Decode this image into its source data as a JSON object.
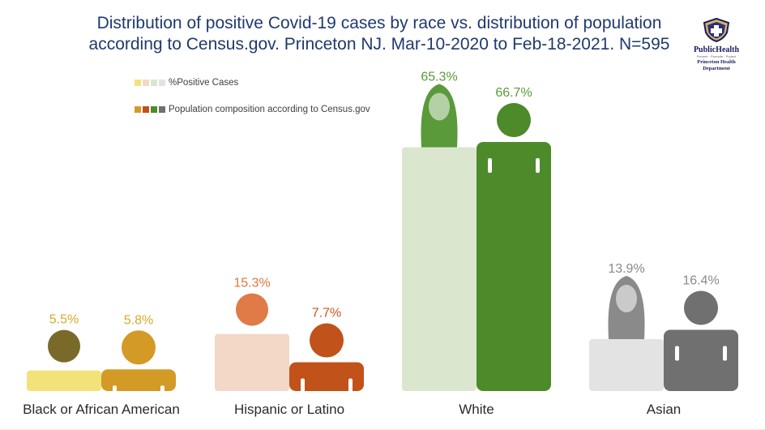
{
  "title_line1": "Distribution of positive Covid-19 cases by race vs. distribution of population",
  "title_line2": "according to Census.gov. Princeton NJ. Mar-10-2020 to Feb-18-2021. N=595",
  "logo": {
    "line1": "PublicHealth",
    "line2": "Prevent · Promote · Protect",
    "line3": "Princeton Health Department"
  },
  "legend": {
    "positive_label": "%Positive Cases",
    "population_label": "Population composition according to Census.gov",
    "positive_swatches": [
      "#f2e27a",
      "#f3d8c7",
      "#dbe6cf",
      "#e3e3e3"
    ],
    "population_swatches": [
      "#d39a26",
      "#c0521a",
      "#4d8a2a",
      "#707070"
    ]
  },
  "chart_data": {
    "type": "bar",
    "categories": [
      "Black or African American",
      "Hispanic or Latino",
      "White",
      "Asian"
    ],
    "series": [
      {
        "name": "%Positive Cases",
        "values": [
          5.5,
          15.3,
          65.3,
          13.9
        ],
        "labels": [
          "5.5%",
          "15.3%",
          "65.3%",
          "13.9%"
        ]
      },
      {
        "name": "Population composition according to Census.gov",
        "values": [
          5.8,
          7.7,
          66.7,
          16.4
        ],
        "labels": [
          "5.8%",
          "7.7%",
          "66.7%",
          "16.4%"
        ]
      }
    ],
    "colors": {
      "positive": [
        "#f2e27a",
        "#f3d8c7",
        "#dbe6cf",
        "#e3e3e3"
      ],
      "population": [
        "#d39a26",
        "#c0521a",
        "#4d8a2a",
        "#707070"
      ],
      "positive_labels": [
        "#d7aa2a",
        "#e0763c",
        "#5a9a3a",
        "#8a8a8a"
      ],
      "population_labels": [
        "#d7aa2a",
        "#c9571e",
        "#5a9a3a",
        "#8a8a8a"
      ]
    },
    "ylim": [
      0,
      70
    ],
    "grid": false,
    "legend_position": "top-left"
  }
}
